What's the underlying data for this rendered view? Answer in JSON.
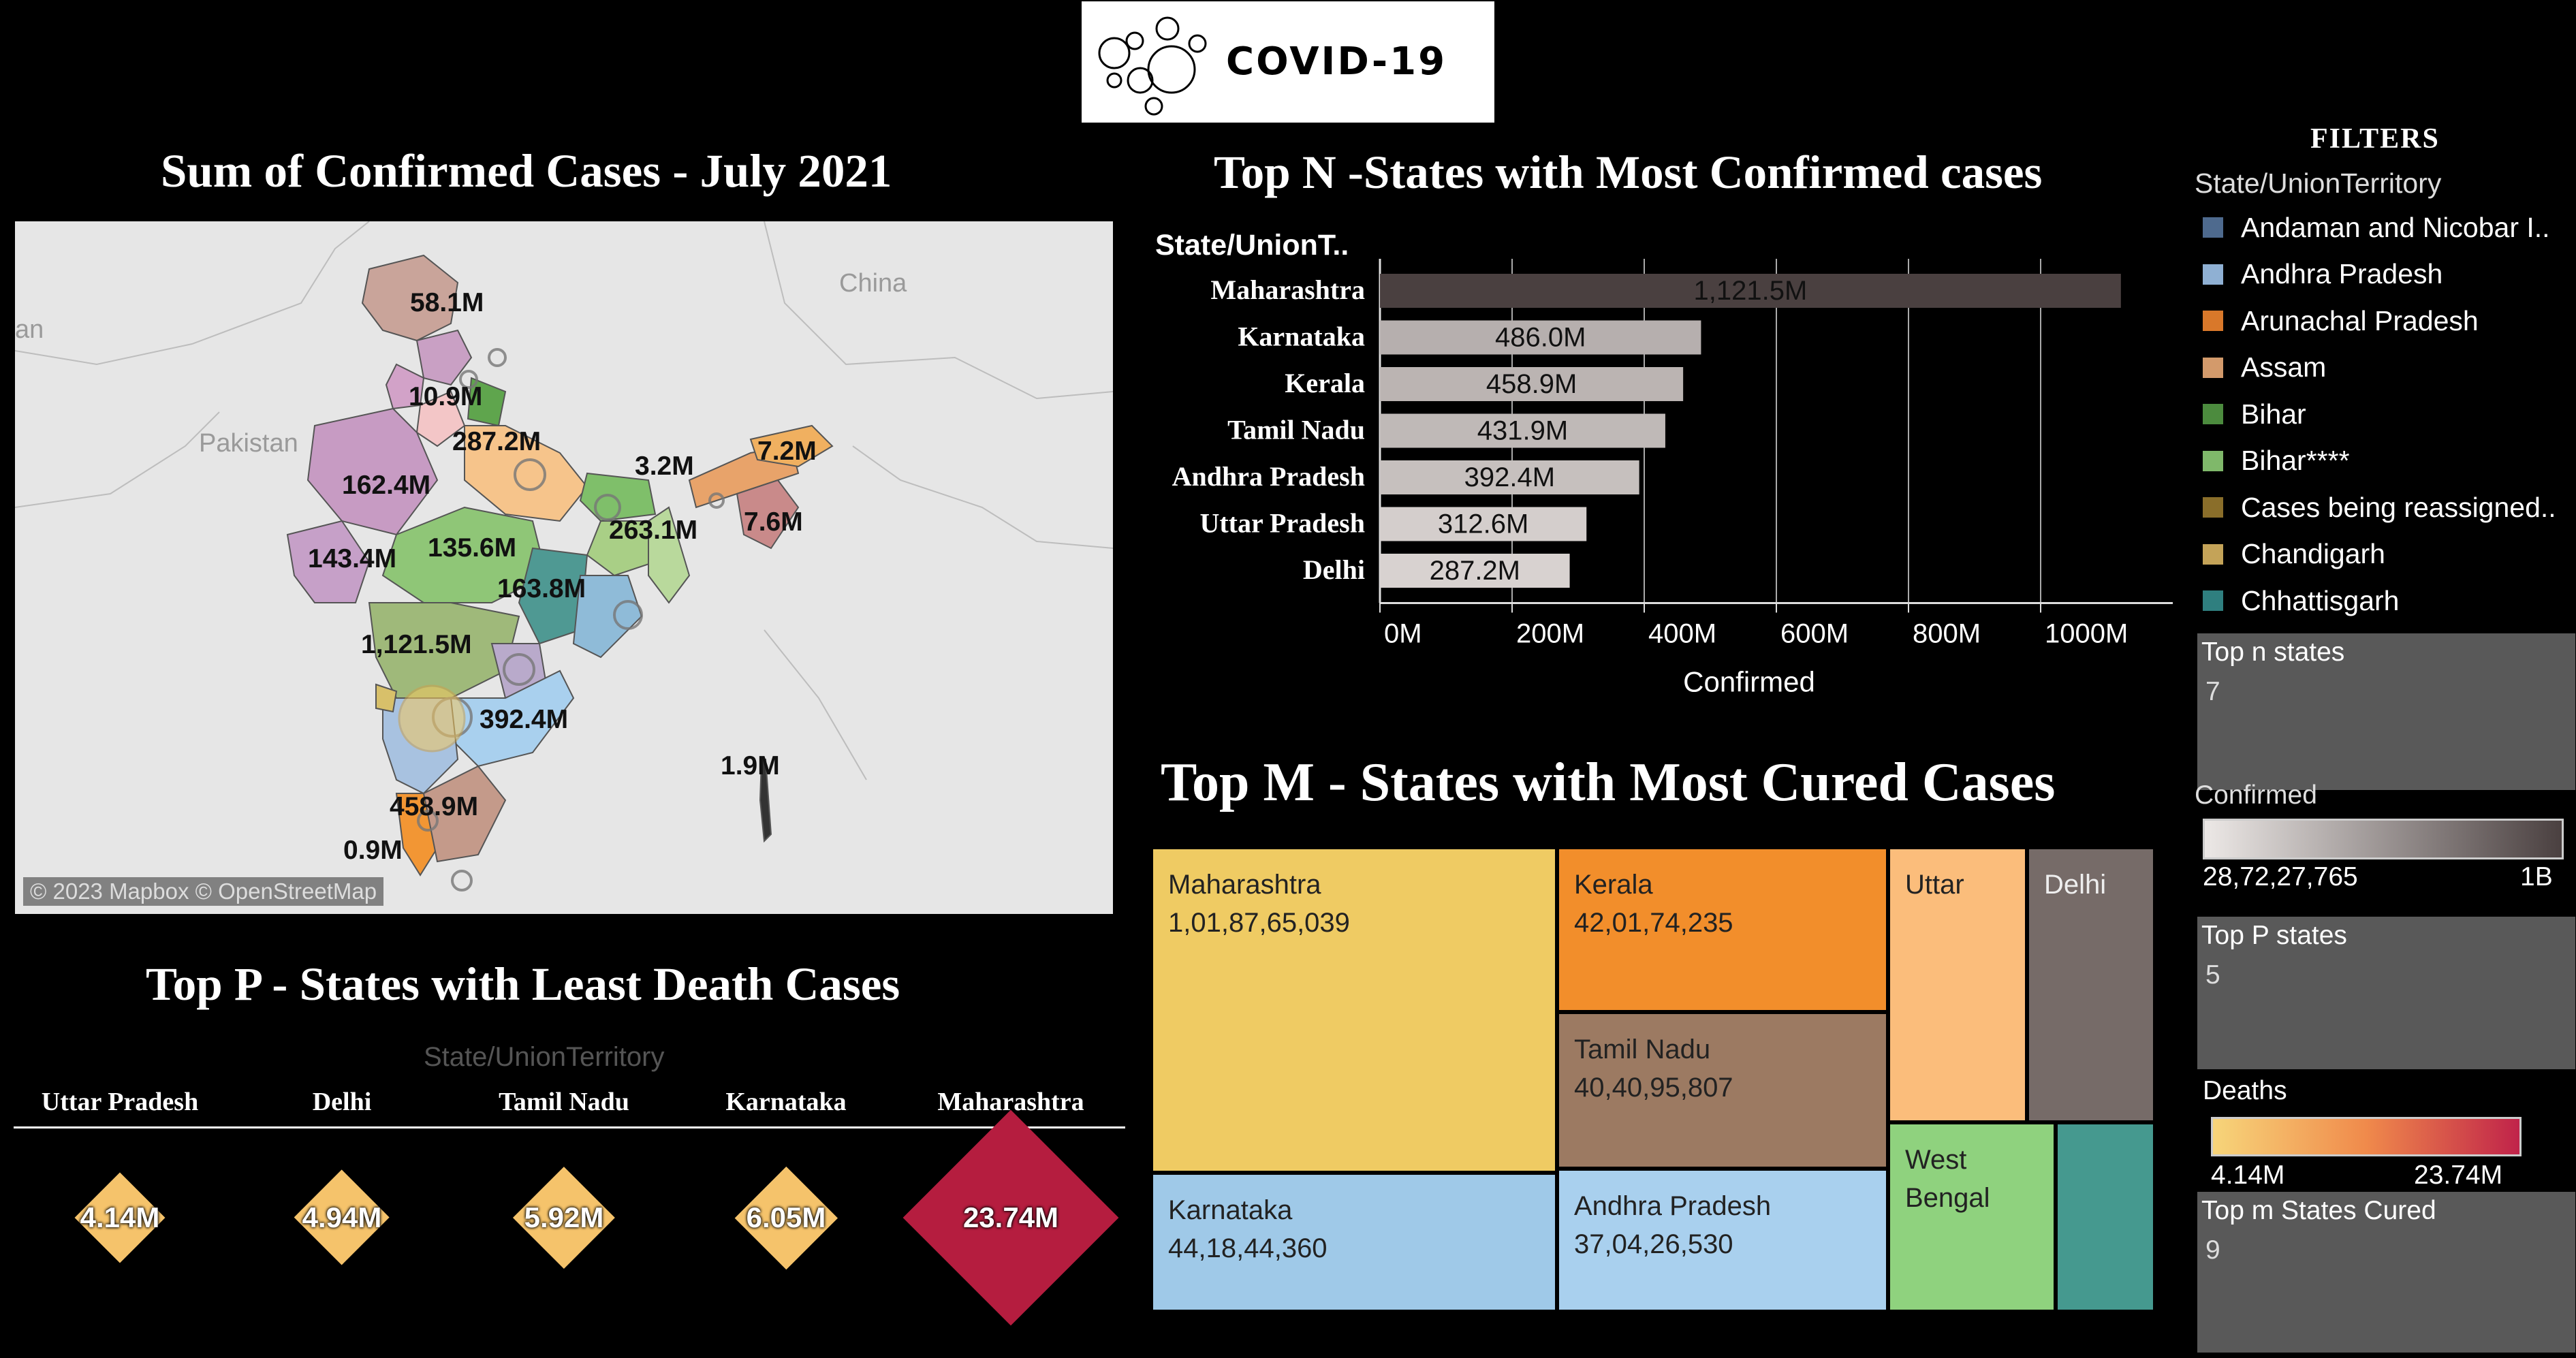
{
  "header": {
    "logo_text": "COVID-19",
    "logo_icon": "virus-bubbles-icon"
  },
  "map_panel": {
    "title": "Sum of Confirmed Cases - July 2021",
    "places": {
      "pakistan": "Pakistan",
      "china": "China",
      "partial": "an"
    },
    "labels": [
      "58.1M",
      "10.9M",
      "287.2M",
      "3.2M",
      "7.2M",
      "162.4M",
      "135.6M",
      "263.1M",
      "7.6M",
      "143.4M",
      "163.8M",
      "1,121.5M",
      "392.4M",
      "1.9M",
      "458.9M",
      "0.9M"
    ],
    "attribution": "© 2023 Mapbox © OpenStreetMap"
  },
  "bar_panel": {
    "title": "Top N -States with Most Confirmed cases",
    "column_header": "State/UnionT..",
    "axis_title": "Confirmed"
  },
  "chart_data": {
    "type": "bar",
    "orientation": "horizontal",
    "categories": [
      "Maharashtra",
      "Karnataka",
      "Kerala",
      "Tamil Nadu",
      "Andhra Pradesh",
      "Uttar Pradesh",
      "Delhi"
    ],
    "values": [
      1121.5,
      486.0,
      458.9,
      431.9,
      392.4,
      312.6,
      287.2
    ],
    "value_labels": [
      "1,121.5M",
      "486.0M",
      "458.9M",
      "431.9M",
      "392.4M",
      "312.6M",
      "287.2M"
    ],
    "xlabel": "Confirmed",
    "xlim": [
      0,
      1200
    ],
    "ticks": [
      0,
      200,
      400,
      600,
      800,
      1000
    ],
    "tick_labels": [
      "0M",
      "200M",
      "400M",
      "600M",
      "800M",
      "1000M"
    ],
    "grid": true,
    "colors": {
      "max": "#4a4040",
      "min": "#d8d2d0"
    }
  },
  "treemap_panel": {
    "title": "Top M - States with Most Cured Cases",
    "cells": [
      {
        "name": "Maharashtra",
        "value": "1,01,87,65,039",
        "color": "#efcb63"
      },
      {
        "name": "Karnataka",
        "value": "44,18,44,360",
        "color": "#9fc9e8"
      },
      {
        "name": "Kerala",
        "value": "42,01,74,235",
        "color": "#f28e2b"
      },
      {
        "name": "Tamil Nadu",
        "value": "40,40,95,807",
        "color": "#9c7a62"
      },
      {
        "name": "Andhra Pradesh",
        "value": "37,04,26,530",
        "color": "#a9d0ee"
      },
      {
        "name": "Uttar",
        "value": "",
        "color": "#fbbd7b"
      },
      {
        "name": "Delhi",
        "value": "",
        "color": "#766b68"
      },
      {
        "name": "West Bengal",
        "value": "",
        "color": "#8fd27e"
      },
      {
        "name": "",
        "value": "",
        "color": "#45998f"
      }
    ]
  },
  "death_panel": {
    "title": "Top P - States with Least Death Cases",
    "column_header": "State/UnionTerritory",
    "states": [
      {
        "name": "Uttar Pradesh",
        "value": "4.14M",
        "color": "#f5c36b"
      },
      {
        "name": "Delhi",
        "value": "4.94M",
        "color": "#f5c36b"
      },
      {
        "name": "Tamil Nadu",
        "value": "5.92M",
        "color": "#f5c36b"
      },
      {
        "name": "Karnataka",
        "value": "6.05M",
        "color": "#f5c36b"
      },
      {
        "name": "Maharashtra",
        "value": "23.74M",
        "color": "#b51d3f"
      }
    ]
  },
  "filters": {
    "heading": "FILTERS",
    "state_label": "State/UnionTerritory",
    "states": [
      {
        "label": "Andaman and Nicobar I..",
        "color": "#4e6a8e"
      },
      {
        "label": "Andhra Pradesh",
        "color": "#8fb0d3"
      },
      {
        "label": "Arunachal Pradesh",
        "color": "#d9782a"
      },
      {
        "label": "Assam",
        "color": "#d39a6b"
      },
      {
        "label": "Bihar",
        "color": "#4c8b3e"
      },
      {
        "label": "Bihar****",
        "color": "#7fb86a"
      },
      {
        "label": "Cases being reassigned..",
        "color": "#8a6e2a"
      },
      {
        "label": "Chandigarh",
        "color": "#c4a358"
      },
      {
        "label": "Chhattisgarh",
        "color": "#2f7f7f"
      }
    ],
    "top_n": {
      "label": "Top n states",
      "value": "7"
    },
    "confirmed_legend": {
      "label": "Confirmed",
      "min": "28,72,27,765",
      "max": "1B"
    },
    "top_p": {
      "label": "Top P states",
      "value": "5"
    },
    "deaths_legend": {
      "label": "Deaths",
      "min": "4.14M",
      "max": "23.74M"
    },
    "top_m": {
      "label": "Top m States Cured",
      "value": "9"
    }
  }
}
